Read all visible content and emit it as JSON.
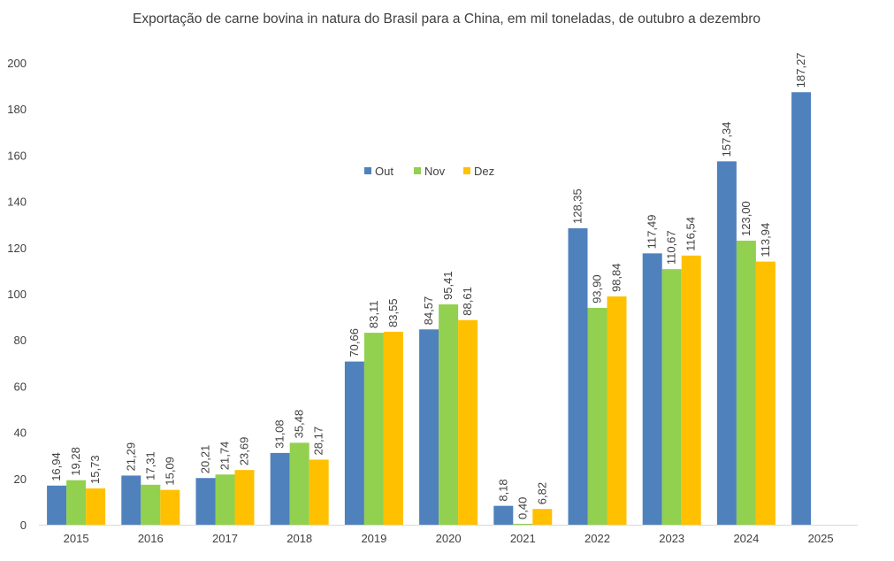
{
  "chart_data": {
    "type": "bar",
    "title": "Exportação de carne bovina in natura do Brasil para a China, em mil toneladas, de outubro a dezembro",
    "xlabel": "",
    "ylabel": "",
    "ylim": [
      0,
      200
    ],
    "yticks": [
      0,
      20,
      40,
      60,
      80,
      100,
      120,
      140,
      160,
      180,
      200
    ],
    "grid": false,
    "legend_position": "top-center",
    "categories": [
      "2015",
      "2016",
      "2017",
      "2018",
      "2019",
      "2020",
      "2021",
      "2022",
      "2023",
      "2024",
      "2025"
    ],
    "series": [
      {
        "name": "Out",
        "color": "#4F81BD",
        "values": [
          16.94,
          21.29,
          20.21,
          31.08,
          70.66,
          84.57,
          8.18,
          128.35,
          117.49,
          157.34,
          187.27
        ],
        "labels": [
          "16,94",
          "21,29",
          "20,21",
          "31,08",
          "70,66",
          "84,57",
          "8,18",
          "128,35",
          "117,49",
          "157,34",
          "187,27"
        ]
      },
      {
        "name": "Nov",
        "color": "#92D050",
        "values": [
          19.28,
          17.31,
          21.74,
          35.48,
          83.11,
          95.41,
          0.4,
          93.9,
          110.67,
          123.0,
          null
        ],
        "labels": [
          "19,28",
          "17,31",
          "21,74",
          "35,48",
          "83,11",
          "95,41",
          "0,40",
          "93,90",
          "110,67",
          "123,00",
          null
        ]
      },
      {
        "name": "Dez",
        "color": "#FFC000",
        "values": [
          15.73,
          15.09,
          23.69,
          28.17,
          83.55,
          88.61,
          6.82,
          98.84,
          116.54,
          113.94,
          null
        ],
        "labels": [
          "15,73",
          "15,09",
          "23,69",
          "28,17",
          "83,55",
          "88,61",
          "6,82",
          "98,84",
          "116,54",
          "113,94",
          null
        ]
      }
    ]
  }
}
